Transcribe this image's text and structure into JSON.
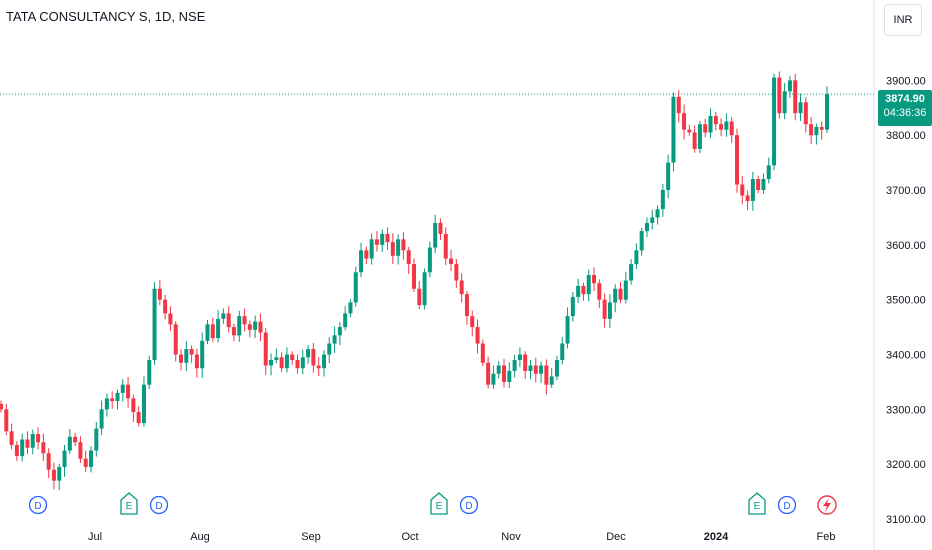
{
  "header": {
    "symbol_title": "TATA CONSULTANCY S, 1D, NSE",
    "currency": "INR"
  },
  "price_tag": {
    "last_price": "3874.90",
    "countdown": "04:36:36"
  },
  "colors": {
    "up": "#089981",
    "down": "#f23645",
    "price_line": "#089981",
    "axis_text": "#131722"
  },
  "chart_data": {
    "type": "candlestick",
    "title": "TATA CONSULTANCY S, 1D, NSE",
    "ylim": [
      3080,
      4010
    ],
    "y_ticks": [
      3100,
      3200,
      3300,
      3400,
      3500,
      3600,
      3700,
      3800,
      3900
    ],
    "y_tick_labels": [
      "3100.00",
      "3200.00",
      "3300.00",
      "3400.00",
      "3500.00",
      "3600.00",
      "3700.00",
      "3800.00",
      "3900.00"
    ],
    "x_ticks": [
      "Jul",
      "Aug",
      "Sep",
      "Oct",
      "Nov",
      "Dec",
      "2024",
      "Feb"
    ],
    "last_price": 3874.9,
    "closes": [
      3300,
      3260,
      3235,
      3215,
      3245,
      3230,
      3255,
      3240,
      3220,
      3190,
      3170,
      3195,
      3225,
      3250,
      3240,
      3210,
      3195,
      3225,
      3265,
      3300,
      3320,
      3315,
      3330,
      3345,
      3320,
      3295,
      3275,
      3345,
      3390,
      3520,
      3500,
      3475,
      3455,
      3400,
      3385,
      3410,
      3400,
      3375,
      3425,
      3455,
      3430,
      3465,
      3475,
      3450,
      3435,
      3470,
      3455,
      3445,
      3460,
      3440,
      3380,
      3390,
      3395,
      3375,
      3400,
      3390,
      3375,
      3395,
      3410,
      3380,
      3375,
      3400,
      3420,
      3435,
      3450,
      3475,
      3495,
      3550,
      3590,
      3575,
      3610,
      3600,
      3620,
      3605,
      3580,
      3610,
      3590,
      3565,
      3520,
      3490,
      3550,
      3595,
      3640,
      3620,
      3575,
      3565,
      3535,
      3510,
      3470,
      3450,
      3420,
      3385,
      3345,
      3365,
      3380,
      3350,
      3370,
      3390,
      3400,
      3370,
      3380,
      3365,
      3380,
      3345,
      3360,
      3390,
      3420,
      3470,
      3505,
      3525,
      3510,
      3545,
      3530,
      3500,
      3465,
      3495,
      3520,
      3500,
      3535,
      3565,
      3590,
      3625,
      3640,
      3650,
      3665,
      3700,
      3750,
      3870,
      3840,
      3810,
      3805,
      3775,
      3820,
      3805,
      3835,
      3820,
      3810,
      3825,
      3800,
      3710,
      3690,
      3680,
      3720,
      3700,
      3720,
      3745,
      3905,
      3840,
      3880,
      3900,
      3840,
      3860,
      3820,
      3800,
      3815,
      3810,
      3875
    ],
    "series": [
      {
        "type": "candlestick",
        "points": [
          {
            "o": 3310,
            "h": 3320,
            "c": 3300,
            "l": 3280
          }
        ]
      }
    ],
    "event_markers": [
      {
        "label": "D",
        "position": "Jun"
      },
      {
        "label": "E",
        "position": "Jul"
      },
      {
        "label": "D",
        "position": "Jul"
      },
      {
        "label": "E",
        "position": "Oct"
      },
      {
        "label": "D",
        "position": "Oct"
      },
      {
        "label": "E",
        "position": "Jan"
      },
      {
        "label": "D",
        "position": "Jan"
      }
    ]
  }
}
